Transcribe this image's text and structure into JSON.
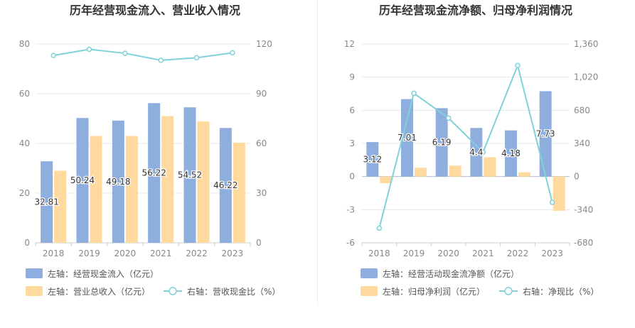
{
  "chart_data": [
    {
      "type": "bar",
      "title": "历年经营现金流入、营业收入情况",
      "categories": [
        "2018",
        "2019",
        "2020",
        "2021",
        "2022",
        "2023"
      ],
      "left_axis": {
        "ylim": [
          0,
          80
        ],
        "ticks": [
          "0",
          "20",
          "40",
          "60",
          "80"
        ]
      },
      "right_axis": {
        "ylim": [
          0,
          120
        ],
        "ticks": [
          "0",
          "30",
          "60",
          "90",
          "120"
        ]
      },
      "series": [
        {
          "name": "左轴：经营现金流入（亿元）",
          "type": "bar",
          "axis": "left",
          "color": "#8eaedd",
          "values": [
            32.81,
            50.24,
            49.18,
            56.22,
            54.52,
            46.22
          ],
          "labels": [
            "32.81",
            "50.24",
            "49.18",
            "56.22",
            "54.52",
            "46.22"
          ]
        },
        {
          "name": "左轴：营业总收入（亿元）",
          "type": "bar",
          "axis": "left",
          "color": "#ffd99e",
          "values": [
            29.0,
            43.0,
            43.0,
            51.0,
            48.8,
            40.3
          ]
        },
        {
          "name": "右轴：营收现金比（%）",
          "type": "line",
          "axis": "right",
          "color": "#7fd3d8",
          "values": [
            113.1,
            116.8,
            114.4,
            110.2,
            111.7,
            114.7
          ]
        }
      ],
      "grid": true,
      "legend_position": "bottom"
    },
    {
      "type": "bar",
      "title": "历年经营现金流净额、归母净利润情况",
      "categories": [
        "2018",
        "2019",
        "2020",
        "2021",
        "2022",
        "2023"
      ],
      "left_axis": {
        "ylim": [
          -6,
          12
        ],
        "ticks": [
          "-6",
          "-3",
          "0",
          "3",
          "6",
          "9",
          "12"
        ]
      },
      "right_axis": {
        "ylim": [
          -680,
          1360
        ],
        "ticks": [
          "-680",
          "-340",
          "0",
          "340",
          "680",
          "1,020",
          "1,360"
        ]
      },
      "series": [
        {
          "name": "左轴：经营活动现金流净额（亿元）",
          "type": "bar",
          "axis": "left",
          "color": "#8eaedd",
          "values": [
            3.12,
            7.01,
            6.19,
            4.4,
            4.18,
            7.73
          ],
          "labels": [
            "3.12",
            "7.01",
            "6.19",
            "4.4",
            "4.18",
            "7.73"
          ]
        },
        {
          "name": "左轴：归母净利润（亿元）",
          "type": "bar",
          "axis": "left",
          "color": "#ffd99e",
          "values": [
            -0.6,
            0.8,
            1.0,
            1.75,
            0.38,
            -3.1
          ]
        },
        {
          "name": "右轴：净现比（%）",
          "type": "line",
          "axis": "right",
          "color": "#7fd3d8",
          "values": [
            -530,
            855,
            600,
            250,
            1140,
            -265
          ]
        }
      ],
      "grid": true,
      "legend_position": "bottom"
    }
  ]
}
